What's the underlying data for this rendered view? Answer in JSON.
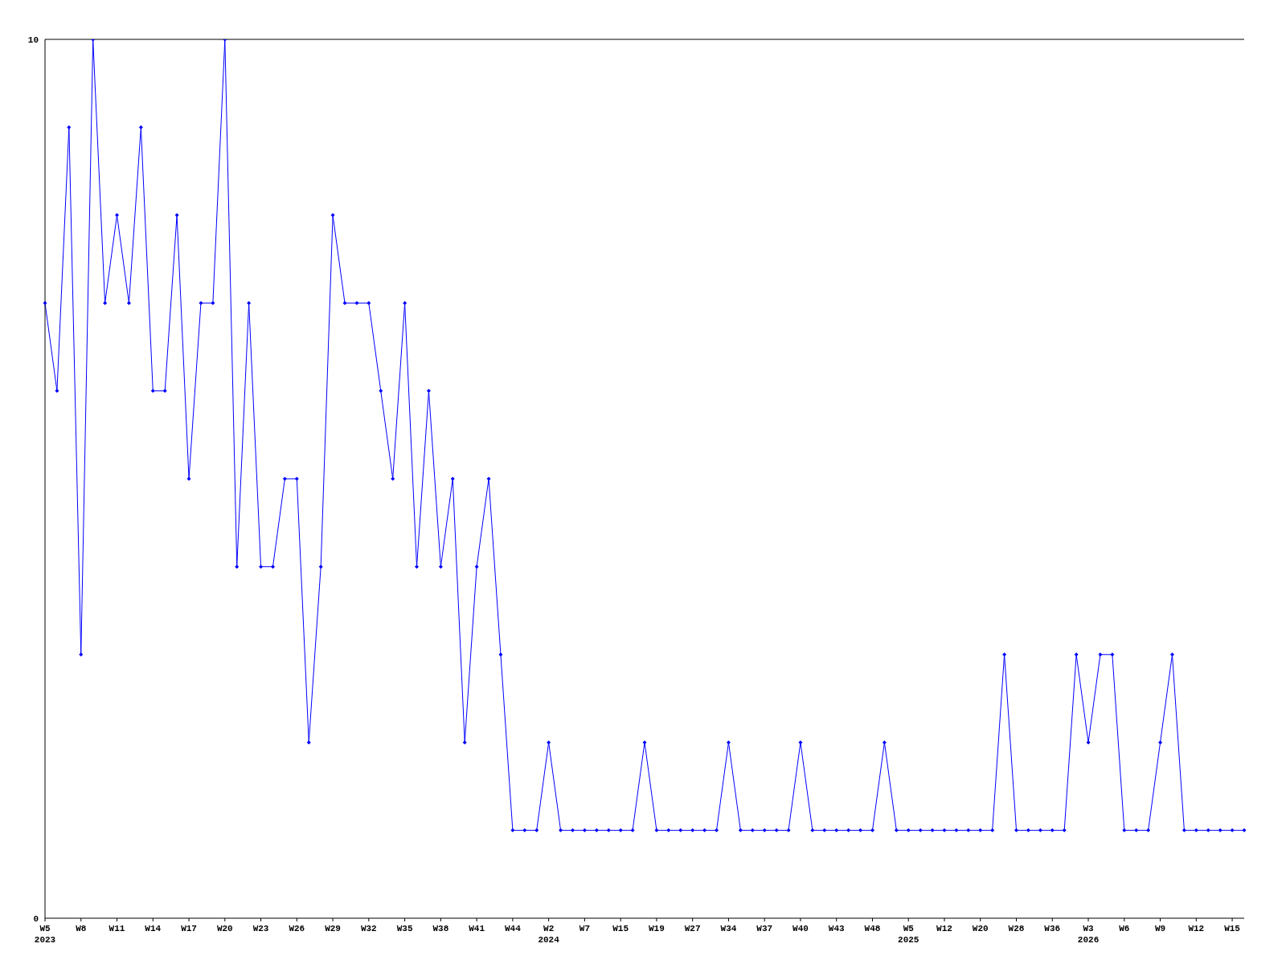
{
  "chart_data": {
    "type": "line",
    "categories": [
      "W5 2023",
      null,
      null,
      "W8",
      null,
      null,
      "W11",
      null,
      null,
      "W14",
      null,
      null,
      "W17",
      null,
      null,
      "W20",
      null,
      null,
      "W23",
      null,
      null,
      "W26",
      null,
      null,
      "W29",
      null,
      null,
      "W32",
      null,
      null,
      "W35",
      null,
      null,
      "W38",
      null,
      null,
      "W41",
      null,
      null,
      "W44",
      null,
      null,
      "W2 2024",
      null,
      null,
      "W7",
      null,
      null,
      "W15",
      null,
      null,
      "W19",
      null,
      null,
      "W27",
      null,
      null,
      "W34",
      null,
      null,
      "W37",
      null,
      null,
      "W40",
      null,
      null,
      "W43",
      null,
      null,
      "W48",
      null,
      null,
      "W5 2025",
      null,
      null,
      "W12",
      null,
      null,
      "W20",
      null,
      null,
      "W28",
      null,
      null,
      "W36",
      null,
      null,
      "W3 2026",
      null,
      null,
      "W6",
      null,
      null,
      "W9",
      null,
      null,
      "W12",
      null,
      null,
      "W15",
      null
    ],
    "series": [
      {
        "color": "#0000ff",
        "values": [
          7,
          6,
          9,
          3,
          10,
          7,
          8,
          7,
          9,
          6,
          6,
          8,
          5,
          7,
          7,
          10,
          4,
          7,
          4,
          4,
          5,
          5,
          2,
          4,
          8,
          7,
          7,
          7,
          6,
          5,
          7,
          4,
          6,
          4,
          5,
          2,
          4,
          5,
          3,
          1,
          1,
          1,
          2,
          1,
          1,
          1,
          1,
          1,
          1,
          1,
          2,
          1,
          1,
          1,
          1,
          1,
          1,
          2,
          1,
          1,
          1,
          1,
          1,
          2,
          1,
          1,
          1,
          1,
          1,
          1,
          2,
          1,
          1,
          1,
          1,
          1,
          1,
          1,
          1,
          1,
          3,
          1,
          1,
          1,
          1,
          1,
          3,
          2,
          3,
          3,
          1,
          1,
          1,
          2,
          3,
          1,
          1,
          1,
          1,
          1,
          1
        ]
      }
    ],
    "ylim": [
      0,
      10
    ],
    "yticks": [
      0,
      10
    ],
    "grid": false,
    "legend": false,
    "marker": "diamond",
    "line_style": "solid"
  }
}
